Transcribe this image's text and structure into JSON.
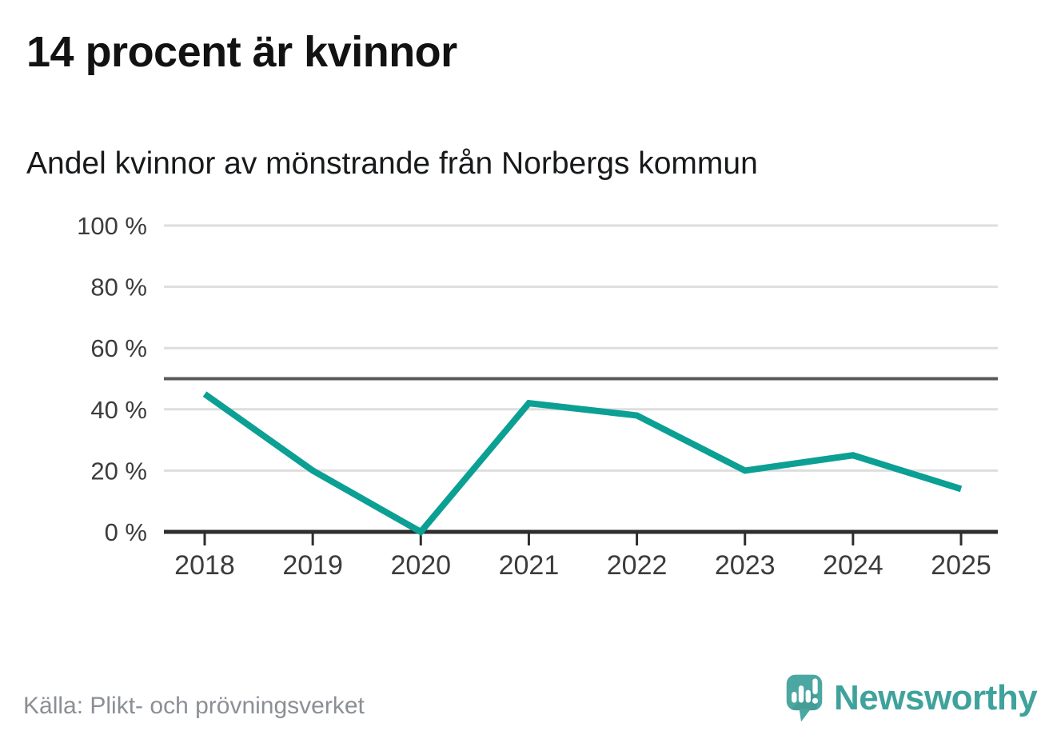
{
  "header": {
    "title": "14 procent är kvinnor",
    "subtitle": "Andel kvinnor av mönstrande från Norbergs kommun"
  },
  "chart_data": {
    "type": "line",
    "title": "14 procent är kvinnor",
    "subtitle": "Andel kvinnor av mönstrande från Norbergs kommun",
    "categories": [
      "2018",
      "2019",
      "2020",
      "2021",
      "2022",
      "2023",
      "2024",
      "2025"
    ],
    "series": [
      {
        "name": "Andel kvinnor av mönstrande",
        "values": [
          45,
          20,
          0,
          42,
          38,
          20,
          25,
          14
        ],
        "color": "#0ba093"
      }
    ],
    "ylim": [
      0,
      100
    ],
    "y_ticks": [
      {
        "value": 0,
        "label": "0 %"
      },
      {
        "value": 20,
        "label": "20 %"
      },
      {
        "value": 40,
        "label": "40 %"
      },
      {
        "value": 60,
        "label": "60 %"
      },
      {
        "value": 80,
        "label": "80 %"
      },
      {
        "value": 100,
        "label": "100 %"
      }
    ],
    "reference_line": {
      "value": 50,
      "color": "#58595b"
    },
    "grid": "horizontal",
    "legend": "none",
    "colors": {
      "grid": "#dedede",
      "axis": "#2e2e2e",
      "tick_text": "#3c3c3c"
    }
  },
  "footer": {
    "source": "Källa: Plikt- och prövningsverket",
    "brand": "Newsworthy",
    "brand_color": "#3fa29c",
    "brand_icon": "newsworthy-speech-bubble-chart-icon"
  }
}
